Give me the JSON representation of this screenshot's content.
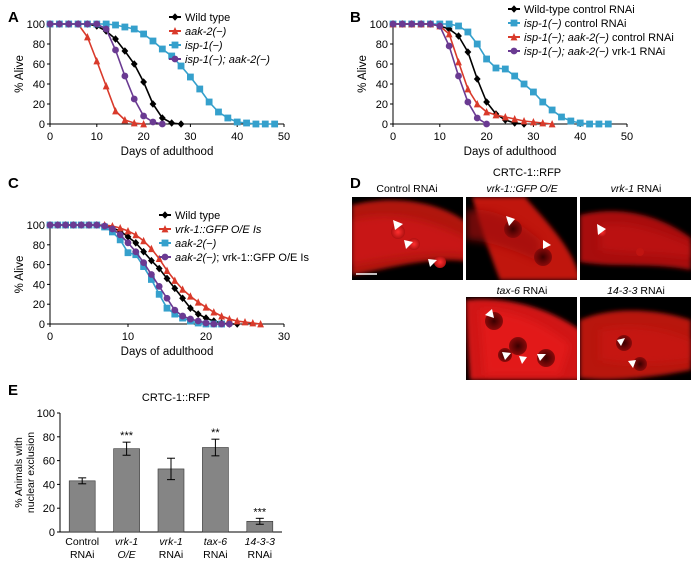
{
  "colors": {
    "wild_type": "#000000",
    "aak2": "#d93a2b",
    "isp1": "#35a0cc",
    "isp1_aak2": "#6a3a92",
    "bar": "#858585",
    "cell": "#e31a1c"
  },
  "chart_data": [
    {
      "id": "A",
      "panel_letter": "A",
      "type": "line",
      "xlabel": "Days of adulthood",
      "ylabel": "% Alive",
      "xlim": [
        0,
        50
      ],
      "ylim": [
        0,
        100
      ],
      "xticks": [
        "0",
        "10",
        "20",
        "30",
        "40",
        "50"
      ],
      "yticks": [
        "0",
        "20",
        "40",
        "60",
        "80",
        "100"
      ],
      "series": [
        {
          "name": "Wild type",
          "color": "#000000",
          "marker": "diamond",
          "x": [
            0,
            2,
            4,
            6,
            8,
            10,
            12,
            14,
            16,
            18,
            20,
            22,
            24,
            26,
            28
          ],
          "y": [
            100,
            100,
            100,
            100,
            100,
            98,
            93,
            85,
            73,
            60,
            42,
            20,
            6,
            1,
            0
          ]
        },
        {
          "name": "aak-2(−)",
          "color": "#d93a2b",
          "marker": "triangle",
          "x": [
            0,
            2,
            4,
            6,
            8,
            10,
            12,
            14,
            16,
            18,
            20
          ],
          "y": [
            100,
            100,
            100,
            100,
            87,
            63,
            38,
            13,
            4,
            1,
            0
          ]
        },
        {
          "name": "isp-1(−)",
          "color": "#35a0cc",
          "marker": "square",
          "x": [
            0,
            2,
            4,
            6,
            8,
            10,
            12,
            14,
            16,
            18,
            20,
            22,
            24,
            26,
            28,
            30,
            32,
            34,
            36,
            38,
            40,
            42,
            44,
            46,
            48
          ],
          "y": [
            100,
            100,
            100,
            100,
            100,
            100,
            100,
            99,
            97,
            95,
            90,
            83,
            75,
            68,
            58,
            47,
            35,
            22,
            12,
            6,
            2,
            1,
            0,
            0,
            0
          ]
        },
        {
          "name": "isp-1(−); aak-2(−)",
          "color": "#6a3a92",
          "marker": "circle",
          "x": [
            0,
            2,
            4,
            6,
            8,
            10,
            12,
            14,
            16,
            18,
            20,
            22,
            24
          ],
          "y": [
            100,
            100,
            100,
            100,
            100,
            100,
            95,
            74,
            48,
            25,
            8,
            2,
            0
          ]
        }
      ]
    },
    {
      "id": "B",
      "panel_letter": "B",
      "type": "line",
      "xlabel": "Days of adulthood",
      "ylabel": "% Alive",
      "xlim": [
        0,
        50
      ],
      "ylim": [
        0,
        100
      ],
      "xticks": [
        "0",
        "10",
        "20",
        "30",
        "40",
        "50"
      ],
      "yticks": [
        "0",
        "20",
        "40",
        "60",
        "80",
        "100"
      ],
      "series": [
        {
          "name": "Wild-type control RNAi",
          "color": "#000000",
          "marker": "diamond",
          "x": [
            0,
            2,
            4,
            6,
            8,
            10,
            12,
            14,
            16,
            18,
            20,
            22,
            24,
            26,
            28
          ],
          "y": [
            100,
            100,
            100,
            100,
            100,
            98,
            95,
            88,
            72,
            45,
            22,
            10,
            4,
            1,
            0
          ]
        },
        {
          "name": "isp-1(−) control RNAi",
          "color": "#35a0cc",
          "marker": "square",
          "x": [
            0,
            2,
            4,
            6,
            8,
            10,
            12,
            14,
            16,
            18,
            20,
            22,
            24,
            26,
            28,
            30,
            32,
            34,
            36,
            38,
            40,
            42,
            44,
            46
          ],
          "y": [
            100,
            100,
            100,
            100,
            100,
            100,
            100,
            98,
            92,
            80,
            65,
            56,
            55,
            48,
            40,
            32,
            22,
            14,
            7,
            3,
            1,
            0,
            0,
            0
          ]
        },
        {
          "name": "isp-1(−); aak-2(−) control RNAi",
          "color": "#d93a2b",
          "marker": "triangle",
          "x": [
            0,
            2,
            4,
            6,
            8,
            10,
            12,
            14,
            16,
            18,
            20,
            22,
            24,
            26,
            28,
            30,
            32,
            34
          ],
          "y": [
            100,
            100,
            100,
            100,
            100,
            98,
            90,
            62,
            35,
            20,
            12,
            9,
            7,
            5,
            3,
            2,
            1,
            0
          ]
        },
        {
          "name": "isp-1(−); aak-2(−) vrk-1 RNAi",
          "color": "#6a3a92",
          "marker": "circle",
          "x": [
            0,
            2,
            4,
            6,
            8,
            10,
            12,
            14,
            16,
            18,
            20
          ],
          "y": [
            100,
            100,
            100,
            100,
            100,
            98,
            78,
            48,
            22,
            6,
            0
          ]
        }
      ]
    },
    {
      "id": "C",
      "panel_letter": "C",
      "type": "line",
      "xlabel": "Days of adulthood",
      "ylabel": "% Alive",
      "xlim": [
        0,
        30
      ],
      "ylim": [
        0,
        100
      ],
      "xticks": [
        "0",
        "10",
        "20",
        "30"
      ],
      "yticks": [
        "0",
        "20",
        "40",
        "60",
        "80",
        "100"
      ],
      "series": [
        {
          "name": "Wild type",
          "color": "#000000",
          "marker": "diamond",
          "x": [
            0,
            1,
            2,
            3,
            4,
            5,
            6,
            7,
            8,
            9,
            10,
            11,
            12,
            13,
            14,
            15,
            16,
            17,
            18,
            19,
            20,
            21,
            22,
            23,
            24
          ],
          "y": [
            100,
            100,
            100,
            100,
            100,
            100,
            100,
            99,
            97,
            94,
            88,
            82,
            73,
            64,
            56,
            46,
            36,
            26,
            16,
            10,
            6,
            3,
            1,
            0,
            0
          ]
        },
        {
          "name": "vrk-1::GFP O/E Is",
          "color": "#d93a2b",
          "marker": "triangle",
          "x": [
            0,
            1,
            2,
            3,
            4,
            5,
            6,
            7,
            8,
            9,
            10,
            11,
            12,
            13,
            14,
            15,
            16,
            17,
            18,
            19,
            20,
            21,
            22,
            23,
            24,
            25,
            26,
            27
          ],
          "y": [
            100,
            100,
            100,
            100,
            100,
            100,
            100,
            100,
            99,
            97,
            94,
            90,
            84,
            76,
            66,
            54,
            44,
            35,
            28,
            22,
            17,
            12,
            8,
            5,
            3,
            2,
            1,
            0
          ]
        },
        {
          "name": "aak-2(−)",
          "color": "#35a0cc",
          "marker": "square",
          "x": [
            0,
            1,
            2,
            3,
            4,
            5,
            6,
            7,
            8,
            9,
            10,
            11,
            12,
            13,
            14,
            15,
            16,
            17,
            18,
            19,
            20,
            21,
            22
          ],
          "y": [
            100,
            100,
            100,
            100,
            100,
            100,
            100,
            98,
            93,
            85,
            72,
            70,
            58,
            45,
            30,
            16,
            10,
            6,
            3,
            1,
            0,
            0,
            0
          ]
        },
        {
          "name": "aak-2(−); vrk-1::GFP O/E Is",
          "color": "#6a3a92",
          "marker": "circle",
          "x": [
            0,
            1,
            2,
            3,
            4,
            5,
            6,
            7,
            8,
            9,
            10,
            11,
            12,
            13,
            14,
            15,
            16,
            17,
            18,
            19,
            20,
            21,
            22,
            23
          ],
          "y": [
            100,
            100,
            100,
            100,
            100,
            100,
            100,
            99,
            96,
            90,
            82,
            73,
            62,
            50,
            38,
            26,
            14,
            8,
            5,
            3,
            1,
            0,
            0,
            0
          ]
        }
      ]
    },
    {
      "id": "E",
      "panel_letter": "E",
      "type": "bar",
      "title": "CRTC-1::RFP",
      "ylabel_line1": "% Animals with",
      "ylabel_line2": "nuclear exclusion",
      "ylim": [
        0,
        100
      ],
      "yticks": [
        "0",
        "20",
        "40",
        "60",
        "80",
        "100"
      ],
      "categories": [
        {
          "line1": "Control",
          "line2": "RNAi",
          "italic1": false
        },
        {
          "line1": "vrk-1",
          "line2": "O/E",
          "italic1": true,
          "italic2": true
        },
        {
          "line1": "vrk-1",
          "line2": "RNAi",
          "italic1": true
        },
        {
          "line1": "tax-6",
          "line2": "RNAi",
          "italic1": true
        },
        {
          "line1": "14-3-3",
          "line2": "RNAi",
          "italic1": true
        }
      ],
      "values": [
        43,
        70,
        53,
        71,
        9
      ],
      "errors": [
        2.5,
        5.5,
        9,
        7,
        2.5
      ],
      "significance": [
        "",
        "***",
        "",
        "**",
        "***"
      ]
    }
  ],
  "microscopy": {
    "panel_letter": "D",
    "title": "CRTC-1::RFP",
    "labels": [
      {
        "text": "Control RNAi",
        "italic_part": "",
        "plain_part": "Control RNAi"
      },
      {
        "text": "vrk-1::GFP O/E",
        "italic_part": "vrk-1::GFP O/E",
        "plain_part": ""
      },
      {
        "text": "vrk-1 RNAi",
        "italic_part": "vrk-1",
        "plain_part": " RNAi"
      },
      {
        "text": "tax-6 RNAi",
        "italic_part": "tax-6",
        "plain_part": " RNAi"
      },
      {
        "text": "14-3-3 RNAi",
        "italic_part": "14-3-3",
        "plain_part": " RNAi"
      }
    ]
  }
}
